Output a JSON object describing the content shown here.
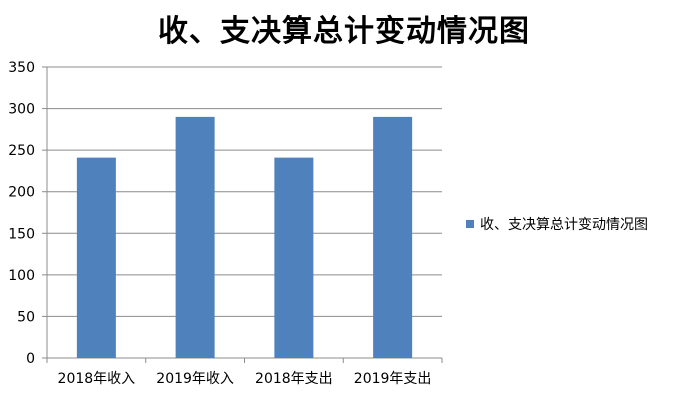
{
  "chart_data": {
    "type": "bar",
    "title": "收、支决算总计变动情况图",
    "xlabel": "",
    "ylabel": "",
    "categories": [
      "2018年收入",
      "2019年收入",
      "2018年支出",
      "2019年支出"
    ],
    "series": [
      {
        "name": "收、支决算总计变动情况图",
        "values": [
          241,
          290,
          241,
          290
        ],
        "color": "#4F81BD"
      }
    ],
    "ylim": [
      0,
      350
    ],
    "yticks": [
      0,
      50,
      100,
      150,
      200,
      250,
      300,
      350
    ],
    "grid": true,
    "legend_position": "right"
  }
}
